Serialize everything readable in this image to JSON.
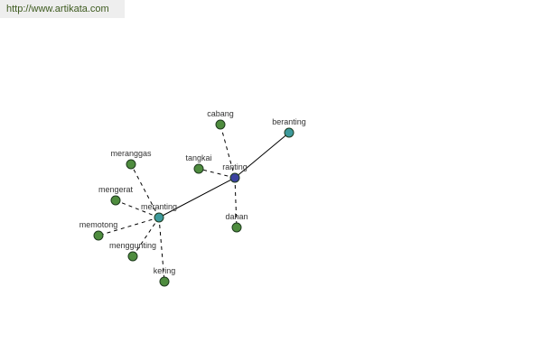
{
  "header": {
    "url": "http://www.artikata.com"
  },
  "colors": {
    "leaf": "#4e8c3e",
    "hub": "#3e9a9c",
    "center": "#3c43a0"
  },
  "graph": {
    "nodes": [
      {
        "id": "ranting",
        "label": "ranting",
        "type": "center"
      },
      {
        "id": "meranting",
        "label": "meranting",
        "type": "hub"
      },
      {
        "id": "beranting",
        "label": "beranting",
        "type": "hub"
      },
      {
        "id": "cabang",
        "label": "cabang",
        "type": "leaf"
      },
      {
        "id": "tangkai",
        "label": "tangkai",
        "type": "leaf"
      },
      {
        "id": "dahan",
        "label": "dahan",
        "type": "leaf"
      },
      {
        "id": "meranggas",
        "label": "meranggas",
        "type": "leaf"
      },
      {
        "id": "mengerat",
        "label": "mengerat",
        "type": "leaf"
      },
      {
        "id": "memotong",
        "label": "memotong",
        "type": "leaf"
      },
      {
        "id": "menggunting",
        "label": "menggunting",
        "type": "leaf"
      },
      {
        "id": "kering",
        "label": "kering",
        "type": "leaf"
      }
    ],
    "edges": [
      {
        "from": "meranting",
        "to": "ranting",
        "style": "solid"
      },
      {
        "from": "ranting",
        "to": "beranting",
        "style": "solid"
      },
      {
        "from": "ranting",
        "to": "cabang",
        "style": "dashed"
      },
      {
        "from": "ranting",
        "to": "tangkai",
        "style": "dashed"
      },
      {
        "from": "ranting",
        "to": "dahan",
        "style": "dashed"
      },
      {
        "from": "meranting",
        "to": "meranggas",
        "style": "dashed"
      },
      {
        "from": "meranting",
        "to": "mengerat",
        "style": "dashed"
      },
      {
        "from": "meranting",
        "to": "memotong",
        "style": "dashed"
      },
      {
        "from": "meranting",
        "to": "menggunting",
        "style": "dashed"
      },
      {
        "from": "meranting",
        "to": "kering",
        "style": "dashed"
      }
    ]
  }
}
